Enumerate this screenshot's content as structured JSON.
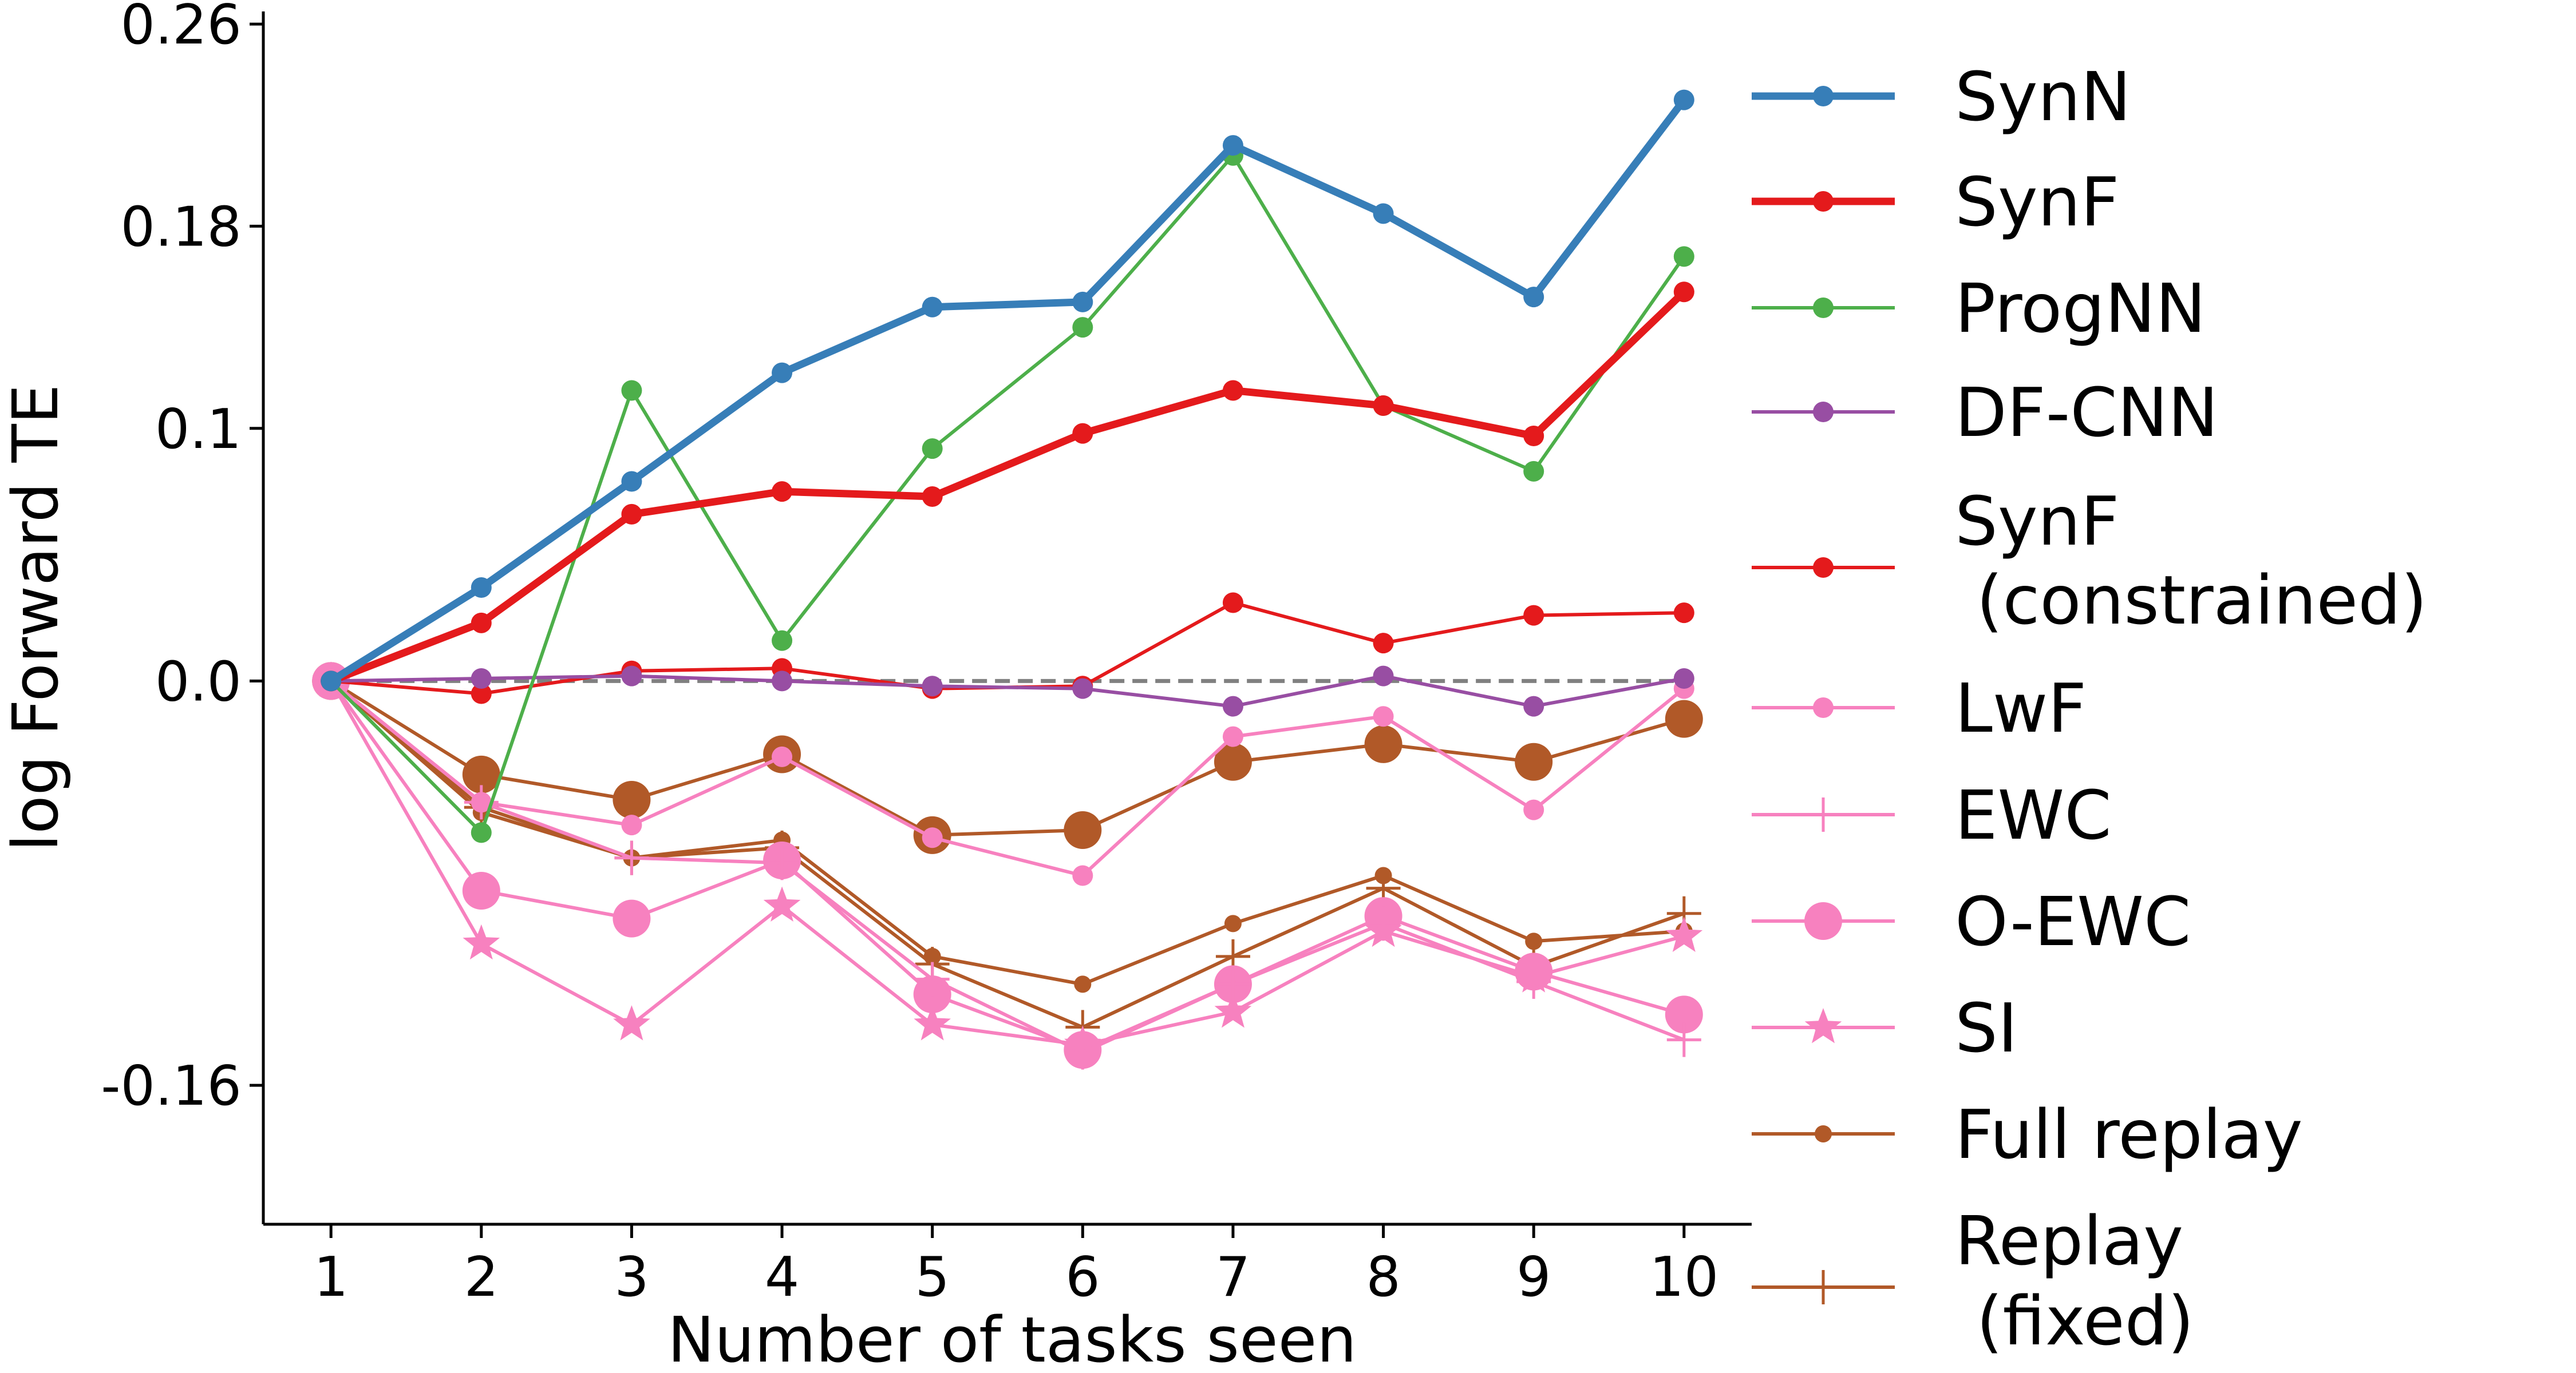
{
  "chart_data": {
    "type": "line",
    "xlabel": "Number of tasks seen",
    "ylabel": "log Forward TE",
    "x": [
      1,
      2,
      3,
      4,
      5,
      6,
      7,
      8,
      9,
      10
    ],
    "xlim": [
      0.55,
      10.45
    ],
    "ylim": [
      -0.215,
      0.265
    ],
    "yticks": [
      0.26,
      0.18,
      0.1,
      0.0,
      -0.16
    ],
    "ytick_labels": [
      "0.26",
      "0.18",
      "0.1",
      "0.0",
      "-0.16"
    ],
    "reference_line": {
      "y": 0.0,
      "style": "dashed",
      "color": "#808080"
    },
    "legend_position": "right",
    "series": [
      {
        "name": "SynN",
        "color": "#377eb8",
        "marker": "circle",
        "linewidth": "thick",
        "values": [
          0.0,
          0.037,
          0.079,
          0.122,
          0.148,
          0.15,
          0.212,
          0.185,
          0.152,
          0.23
        ]
      },
      {
        "name": "SynF",
        "color": "#e41a1c",
        "marker": "circle",
        "linewidth": "thick",
        "values": [
          0.0,
          0.023,
          0.066,
          0.075,
          0.073,
          0.098,
          0.115,
          0.109,
          0.097,
          0.154
        ]
      },
      {
        "name": "ProgNN",
        "color": "#4daf4a",
        "marker": "circle",
        "linewidth": "thin",
        "values": [
          0.0,
          -0.06,
          0.115,
          0.016,
          0.092,
          0.14,
          0.208,
          0.109,
          0.083,
          0.168
        ]
      },
      {
        "name": "DF-CNN",
        "color": "#984ea3",
        "marker": "circle",
        "linewidth": "thin",
        "values": [
          0.0,
          0.001,
          0.002,
          0.0,
          -0.002,
          -0.003,
          -0.01,
          0.002,
          -0.01,
          0.001
        ]
      },
      {
        "name": "SynF\n (constrained)",
        "color": "#e41a1c",
        "marker": "circle",
        "linewidth": "thin",
        "values": [
          0.0,
          -0.005,
          0.004,
          0.005,
          -0.003,
          -0.002,
          0.031,
          0.015,
          0.026,
          0.027
        ]
      },
      {
        "name": "LwF",
        "color": "#f781bf",
        "marker": "circle",
        "linewidth": "thin",
        "values": [
          0.0,
          -0.048,
          -0.057,
          -0.03,
          -0.062,
          -0.077,
          -0.022,
          -0.014,
          -0.051,
          -0.003
        ]
      },
      {
        "name": "EWC",
        "color": "#f781bf",
        "marker": "plus",
        "linewidth": "thin",
        "values": [
          0.0,
          -0.048,
          -0.07,
          -0.072,
          -0.118,
          -0.147,
          -0.12,
          -0.096,
          -0.119,
          -0.142
        ]
      },
      {
        "name": "O-EWC",
        "color": "#f781bf",
        "marker": "bigcircle",
        "linewidth": "thin",
        "values": [
          0.0,
          -0.083,
          -0.094,
          -0.071,
          -0.124,
          -0.146,
          -0.12,
          -0.093,
          -0.115,
          -0.132
        ]
      },
      {
        "name": "SI",
        "color": "#f781bf",
        "marker": "star",
        "linewidth": "thin",
        "values": [
          0.0,
          -0.104,
          -0.136,
          -0.089,
          -0.136,
          -0.144,
          -0.131,
          -0.099,
          -0.117,
          -0.101
        ]
      },
      {
        "name": "Full replay",
        "color": "#b15928",
        "marker": "smallcircle",
        "linewidth": "thin",
        "values": [
          0.0,
          -0.052,
          -0.07,
          -0.063,
          -0.109,
          -0.12,
          -0.096,
          -0.077,
          -0.103,
          -0.099
        ]
      },
      {
        "name": "Replay\n (fixed)",
        "color": "#b15928",
        "marker": "plus",
        "linewidth": "thin",
        "values": [
          0.0,
          -0.05,
          -0.07,
          -0.066,
          -0.112,
          -0.137,
          -0.109,
          -0.082,
          -0.113,
          -0.092
        ]
      },
      {
        "name": "O-EWC-brown",
        "legend": false,
        "color": "#b15928",
        "marker": "bigcircle",
        "linewidth": "thin",
        "values": [
          0.0,
          -0.037,
          -0.047,
          -0.029,
          -0.061,
          -0.059,
          -0.032,
          -0.025,
          -0.032,
          -0.015
        ]
      }
    ]
  }
}
